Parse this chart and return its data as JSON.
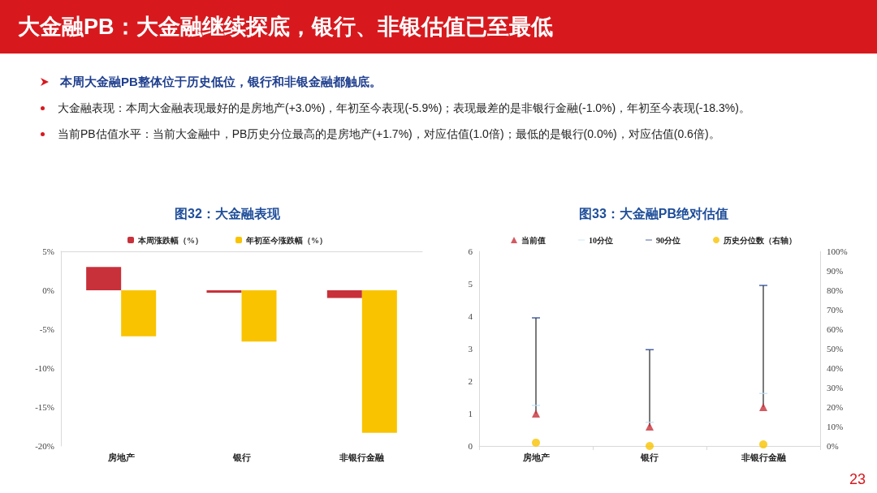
{
  "chart_data": [
    {
      "type": "bar",
      "title": "图32：大金融表现",
      "annotations": [
        "大金融PB：大金融继续探底，银行、非银估值已至最低",
        "本周大金融PB整体位于历史低位，银行和非银金融都触底。",
        "大金融表现：本周大金融表现最好的是房地产(+3.0%)，年初至今表现(-5.9%)；表现最差的是非银行金融(-1.0%)，年初至今表现(-18.3%)。",
        "当前PB估值水平：当前大金融中，PB历史分位最高的是房地产(+1.7%)，对应估值(1.0倍)；最低的是银行(0.0%)，对应估值(0.6倍)。"
      ],
      "categories": [
        "房地产",
        "银行",
        "非银行金融"
      ],
      "series": [
        {
          "name": "本周涨跌幅（%）",
          "color": "#c8313a",
          "values": [
            3.0,
            -0.3,
            -1.0
          ]
        },
        {
          "name": "年初至今涨跌幅（%）",
          "color": "#f9c300",
          "values": [
            -5.9,
            -6.6,
            -18.3
          ]
        }
      ],
      "ylim": [
        -20,
        5
      ],
      "yticks": [
        {
          "value": -20,
          "label": "-20%"
        },
        {
          "value": -15,
          "label": "-15%"
        },
        {
          "value": -10,
          "label": "-10%"
        },
        {
          "value": -5,
          "label": "-5%"
        },
        {
          "value": 0,
          "label": "0%"
        },
        {
          "value": 5,
          "label": "5%"
        }
      ],
      "legend": "top",
      "grid": false
    },
    {
      "type": "scatter",
      "title": "图33：大金融PB绝对估值",
      "annotations": [
        "23"
      ],
      "categories": [
        "房地产",
        "银行",
        "非银行金融"
      ],
      "series": [
        {
          "name": "当前值",
          "color": "#c8313a",
          "marker": "triangle",
          "values": [
            1.0,
            0.6,
            1.2
          ]
        },
        {
          "name": "10分位",
          "color": "#bde0f5",
          "values": [
            1.25,
            0.73,
            1.62
          ]
        },
        {
          "name": "90分位",
          "color": "#1f3f8f",
          "values": [
            3.95,
            2.97,
            4.95
          ]
        },
        {
          "name": "历史分位数（右轴）",
          "color": "#f9c300",
          "marker": "circle",
          "axis": "y2",
          "values": [
            1.7,
            0.0,
            0.8
          ]
        }
      ],
      "ylim": [
        0,
        6
      ],
      "yticks": [
        0,
        1,
        2,
        3,
        4,
        5,
        6
      ],
      "y2lim": [
        0,
        100
      ],
      "y2ticks": [
        {
          "value": 0,
          "label": "0%"
        },
        {
          "value": 10,
          "label": "10%"
        },
        {
          "value": 20,
          "label": "20%"
        },
        {
          "value": 30,
          "label": "30%"
        },
        {
          "value": 40,
          "label": "40%"
        },
        {
          "value": 50,
          "label": "50%"
        },
        {
          "value": 60,
          "label": "60%"
        },
        {
          "value": 70,
          "label": "70%"
        },
        {
          "value": 80,
          "label": "80%"
        },
        {
          "value": 90,
          "label": "90%"
        },
        {
          "value": 100,
          "label": "100%"
        }
      ],
      "legend": "top",
      "grid": false
    }
  ]
}
